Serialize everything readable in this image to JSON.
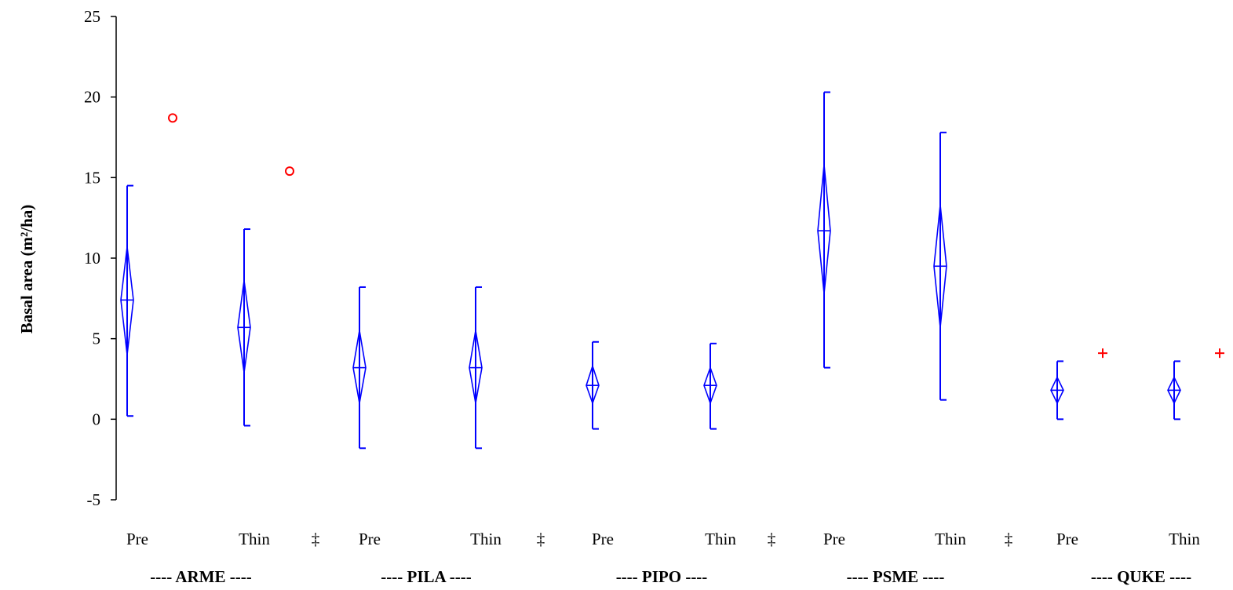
{
  "chart_data": {
    "type": "box",
    "ylabel": "Basal area (m²/ha)",
    "ylim": [
      -5,
      25
    ],
    "yticks": [
      -5,
      0,
      5,
      10,
      15,
      20,
      25
    ],
    "groups": [
      {
        "label": "---- ARME ----",
        "separator": "‡",
        "categories": [
          {
            "label": "Pre",
            "whisker_low": 0.2,
            "whisker_high": 14.5,
            "ci_low": 4.0,
            "ci_high": 10.7,
            "mean": 7.4,
            "outliers": [
              {
                "value": 18.7,
                "marker": "circle"
              }
            ]
          },
          {
            "label": "Thin",
            "whisker_low": -0.4,
            "whisker_high": 11.8,
            "ci_low": 2.9,
            "ci_high": 8.6,
            "mean": 5.7,
            "outliers": [
              {
                "value": 15.4,
                "marker": "circle"
              }
            ]
          }
        ]
      },
      {
        "label": "---- PILA ----",
        "separator": "‡",
        "categories": [
          {
            "label": "Pre",
            "whisker_low": -1.8,
            "whisker_high": 8.2,
            "ci_low": 1.0,
            "ci_high": 5.5,
            "mean": 3.2,
            "outliers": []
          },
          {
            "label": "Thin",
            "whisker_low": -1.8,
            "whisker_high": 8.2,
            "ci_low": 1.0,
            "ci_high": 5.5,
            "mean": 3.2,
            "outliers": []
          }
        ]
      },
      {
        "label": "---- PIPO ----",
        "separator": "‡",
        "categories": [
          {
            "label": "Pre",
            "whisker_low": -0.6,
            "whisker_high": 4.8,
            "ci_low": 1.0,
            "ci_high": 3.3,
            "mean": 2.1,
            "outliers": []
          },
          {
            "label": "Thin",
            "whisker_low": -0.6,
            "whisker_high": 4.7,
            "ci_low": 1.0,
            "ci_high": 3.2,
            "mean": 2.1,
            "outliers": []
          }
        ]
      },
      {
        "label": "---- PSME ----",
        "separator": "‡",
        "categories": [
          {
            "label": "Pre",
            "whisker_low": 3.2,
            "whisker_high": 20.3,
            "ci_low": 7.8,
            "ci_high": 15.8,
            "mean": 11.7,
            "outliers": []
          },
          {
            "label": "Thin",
            "whisker_low": 1.2,
            "whisker_high": 17.8,
            "ci_low": 5.7,
            "ci_high": 13.3,
            "mean": 9.5,
            "outliers": []
          }
        ]
      },
      {
        "label": "---- QUKE ----",
        "separator": "",
        "categories": [
          {
            "label": "Pre",
            "whisker_low": 0.0,
            "whisker_high": 3.6,
            "ci_low": 1.0,
            "ci_high": 2.6,
            "mean": 1.8,
            "outliers": [
              {
                "value": 4.1,
                "marker": "plus"
              }
            ]
          },
          {
            "label": "Thin",
            "whisker_low": 0.0,
            "whisker_high": 3.6,
            "ci_low": 1.0,
            "ci_high": 2.6,
            "mean": 1.8,
            "outliers": [
              {
                "value": 4.1,
                "marker": "plus"
              }
            ]
          }
        ]
      }
    ],
    "colors": {
      "box": "#0000ff",
      "outlier": "#ff0000",
      "axis": "#000000"
    }
  }
}
